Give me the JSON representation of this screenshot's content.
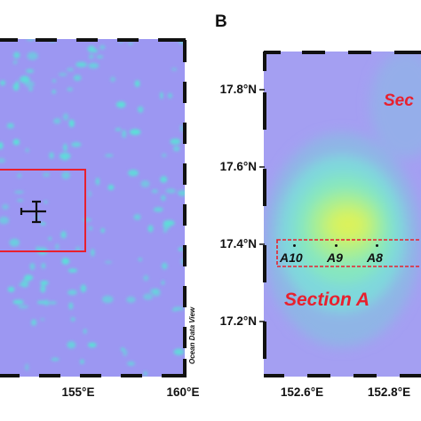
{
  "panel_a": {
    "lon_labels": [
      "155°E",
      "160°E"
    ],
    "credit": "Ocean Data View",
    "colors": {
      "background": "#9c97f2",
      "patch": "#5be0d8",
      "box": "#e8202e",
      "marker": "#000000"
    },
    "marker_icon": "cross-error-bar-icon"
  },
  "panel_b": {
    "letter": "B",
    "lat_labels": [
      "17.8°N",
      "17.6°N",
      "17.4°N",
      "17.2°N"
    ],
    "lon_labels": [
      "152.6°E",
      "152.8°E"
    ],
    "section_a_label": "Section A",
    "section_b_partial": "Sec",
    "stations": [
      "A10",
      "A9",
      "A8"
    ],
    "colors": {
      "background": "#a49ff2",
      "core": "#d8f060",
      "section": "#e8202e"
    }
  }
}
